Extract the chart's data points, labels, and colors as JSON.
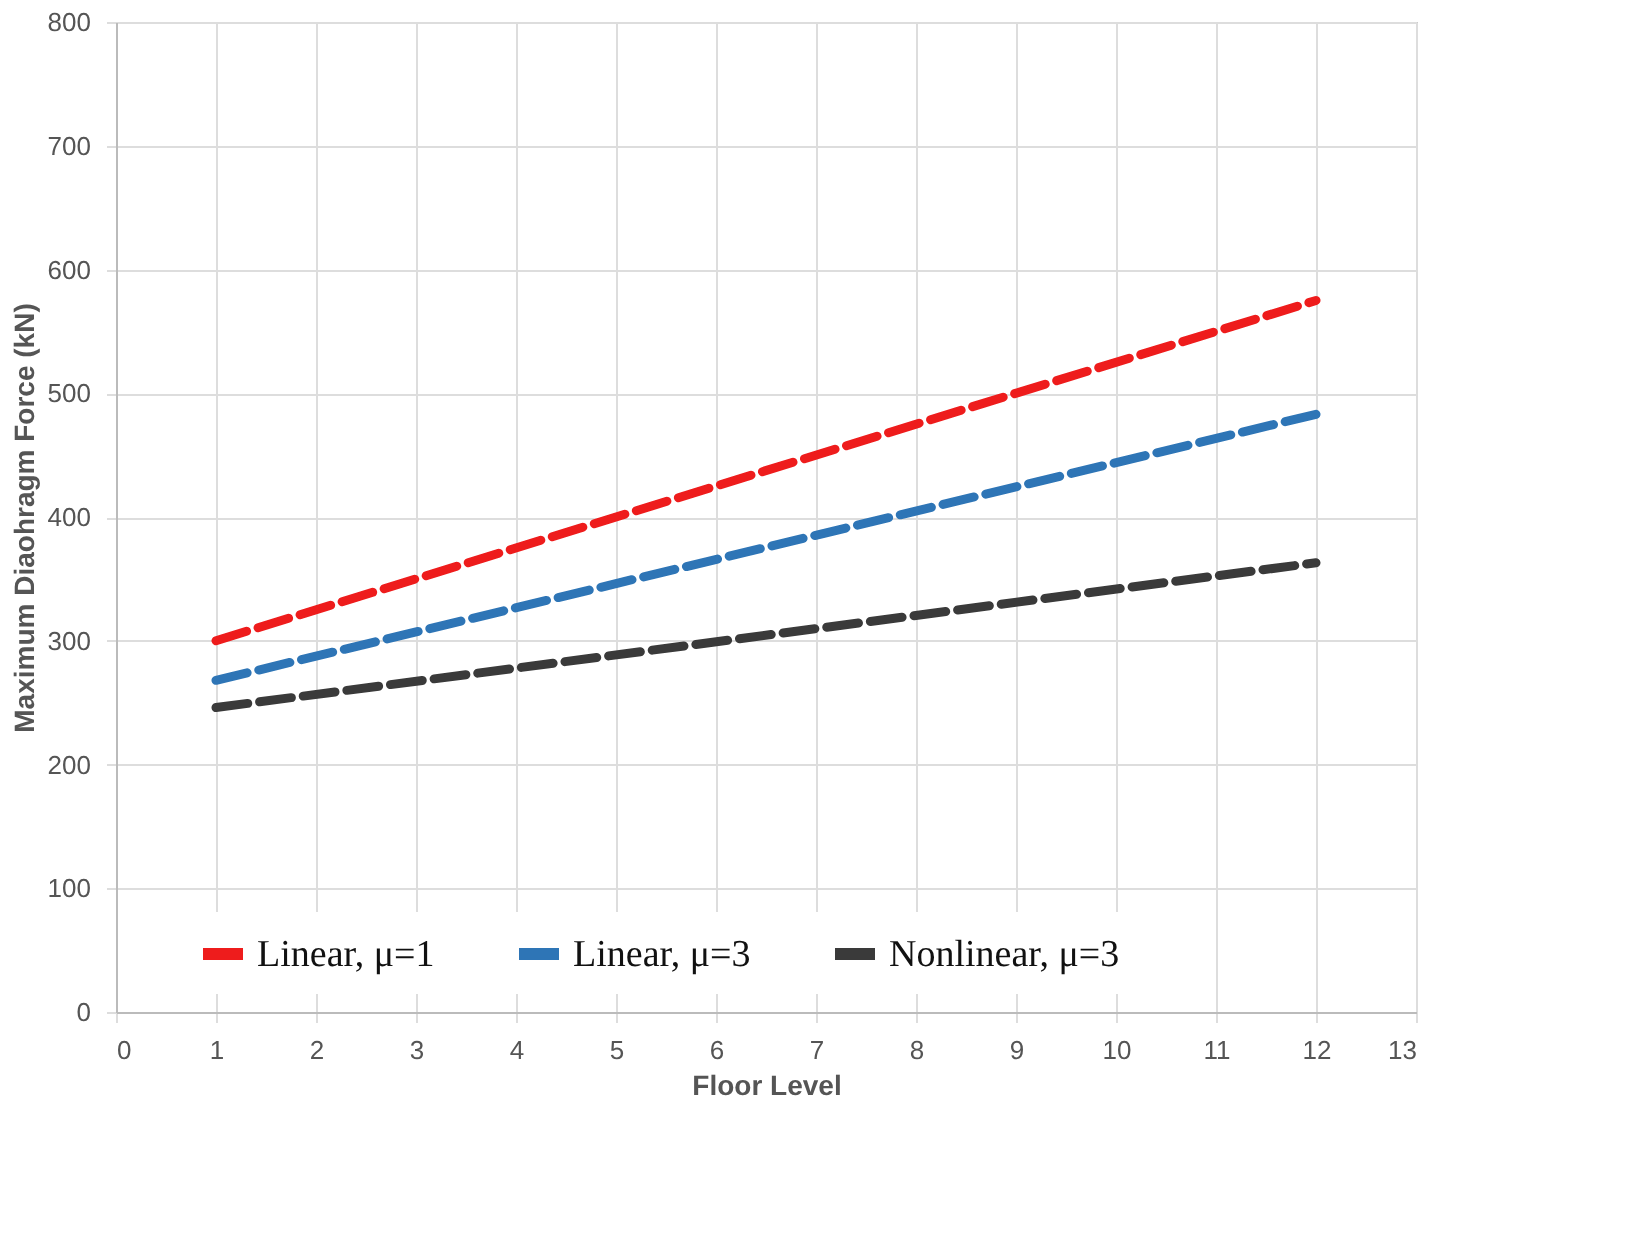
{
  "chart_data": {
    "type": "line",
    "xlabel": "Floor Level",
    "ylabel": "Maximum Diaohragm Force (kN)",
    "x": [
      1,
      12
    ],
    "series": [
      {
        "name": "Linear, μ=1",
        "color": "#ee1c1c",
        "values": [
          300,
          575
        ]
      },
      {
        "name": "Linear, μ=3",
        "color": "#2e75b6",
        "values": [
          268,
          483
        ]
      },
      {
        "name": "Nonlinear, μ=3",
        "color": "#3a3a3a",
        "values": [
          246,
          363
        ]
      }
    ],
    "xlim": [
      0,
      13
    ],
    "xticks": [
      0,
      1,
      2,
      3,
      4,
      5,
      6,
      7,
      8,
      9,
      10,
      11,
      12,
      13
    ],
    "ylim": [
      0,
      800
    ],
    "yticks": [
      0,
      100,
      200,
      300,
      400,
      500,
      600,
      700,
      800
    ],
    "grid": true,
    "legend": "bottom",
    "line_style": "dashed",
    "marker": "none"
  }
}
